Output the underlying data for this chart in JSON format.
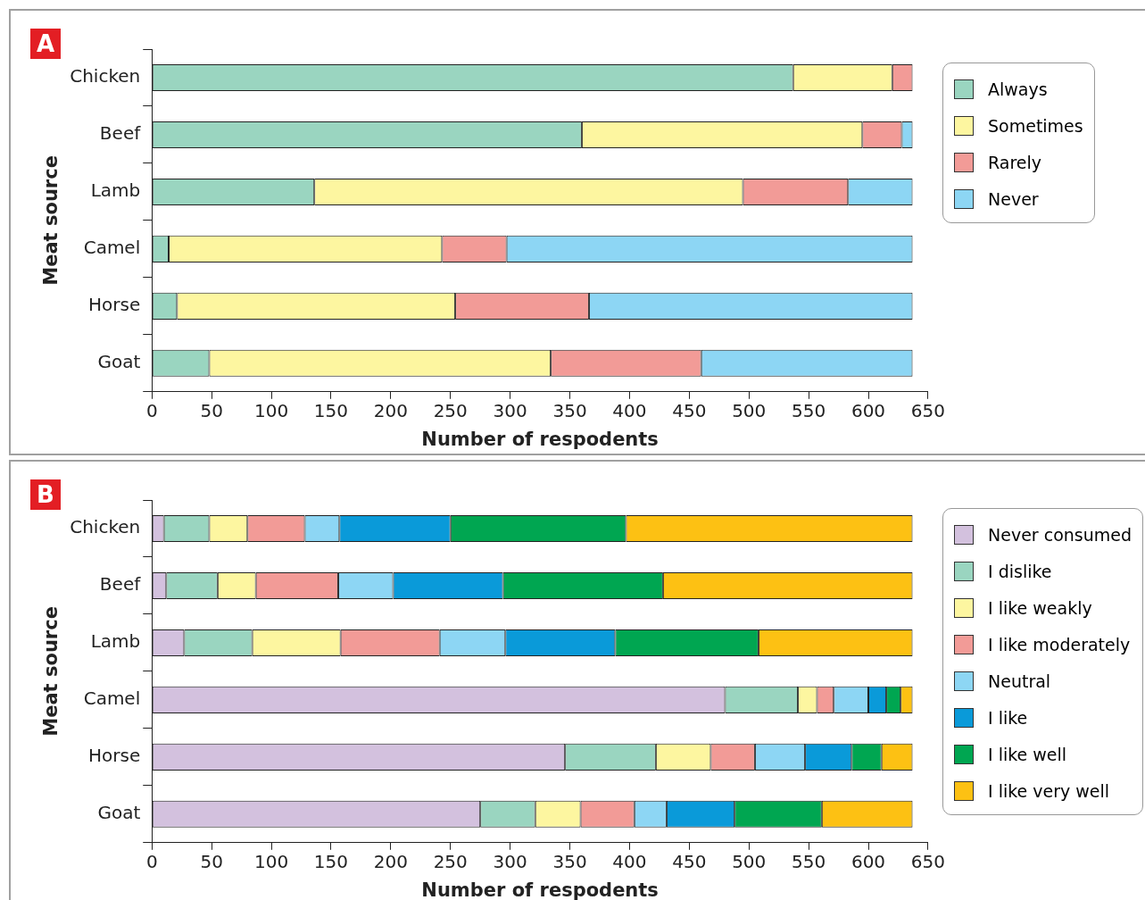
{
  "chart_data": [
    {
      "type": "bar",
      "title": "A",
      "orientation": "horizontal",
      "stacked": true,
      "grid": false,
      "legend": "right",
      "xlabel": "Number of respodents",
      "ylabel": "Meat source",
      "categories": [
        "Chicken",
        "Beef",
        "Lamb",
        "Camel",
        "Horse",
        "Goat"
      ],
      "xlim": [
        0,
        650
      ],
      "xticks": [
        0,
        50,
        100,
        150,
        200,
        250,
        300,
        350,
        400,
        450,
        500,
        550,
        600,
        650
      ],
      "series": [
        {
          "name": "Always",
          "color": "#9ad5c0",
          "values": [
            537,
            360,
            136,
            14,
            21,
            48
          ]
        },
        {
          "name": "Sometimes",
          "color": "#fdf6a0",
          "values": [
            83,
            235,
            359,
            229,
            233,
            286
          ]
        },
        {
          "name": "Rarely",
          "color": "#f29b97",
          "values": [
            17,
            33,
            88,
            54,
            112,
            126
          ]
        },
        {
          "name": "Never",
          "color": "#8dd6f4",
          "values": [
            0,
            9,
            54,
            340,
            271,
            177
          ]
        }
      ]
    },
    {
      "type": "bar",
      "title": "B",
      "orientation": "horizontal",
      "stacked": true,
      "grid": false,
      "legend": "right",
      "xlabel": "Number of respodents",
      "ylabel": "Meat source",
      "categories": [
        "Chicken",
        "Beef",
        "Lamb",
        "Camel",
        "Horse",
        "Goat"
      ],
      "xlim": [
        0,
        650
      ],
      "xticks": [
        0,
        50,
        100,
        150,
        200,
        250,
        300,
        350,
        400,
        450,
        500,
        550,
        600,
        650
      ],
      "series": [
        {
          "name": "Never consumed",
          "color": "#d3c1de",
          "values": [
            10,
            12,
            27,
            480,
            346,
            275
          ]
        },
        {
          "name": "I dislike",
          "color": "#9ad5c0",
          "values": [
            38,
            43,
            57,
            61,
            76,
            46
          ]
        },
        {
          "name": "I like weakly",
          "color": "#fdf6a0",
          "values": [
            32,
            32,
            74,
            16,
            46,
            38
          ]
        },
        {
          "name": "I like moderately",
          "color": "#f29b97",
          "values": [
            48,
            69,
            83,
            14,
            37,
            45
          ]
        },
        {
          "name": "Neutral",
          "color": "#8dd6f4",
          "values": [
            29,
            46,
            55,
            29,
            42,
            27
          ]
        },
        {
          "name": "I like",
          "color": "#0a9ad9",
          "values": [
            93,
            92,
            92,
            15,
            39,
            57
          ]
        },
        {
          "name": "I like well",
          "color": "#00a651",
          "values": [
            147,
            134,
            120,
            12,
            25,
            73
          ]
        },
        {
          "name": "I like very well",
          "color": "#fdc113",
          "values": [
            240,
            209,
            129,
            10,
            26,
            76
          ]
        }
      ]
    }
  ]
}
